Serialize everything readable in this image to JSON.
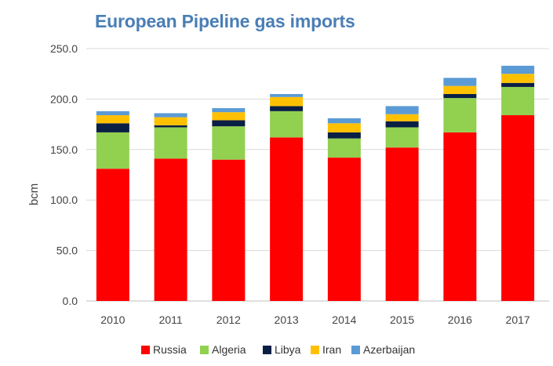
{
  "chart_data": {
    "type": "bar",
    "stacked": true,
    "title": "European Pipeline gas imports",
    "xlabel": "",
    "ylabel": "bcm",
    "categories": [
      "2010",
      "2011",
      "2012",
      "2013",
      "2014",
      "2015",
      "2016",
      "2017"
    ],
    "ylim": [
      0,
      250
    ],
    "yticks": [
      "0.0",
      "50.0",
      "100.0",
      "150.0",
      "200.0",
      "250.0"
    ],
    "grid": true,
    "legend": "bottom",
    "series": [
      {
        "name": "Russia",
        "color": "#ff0000",
        "values": [
          131,
          141,
          140,
          162,
          142,
          152,
          167,
          184
        ]
      },
      {
        "name": "Algeria",
        "color": "#92d050",
        "values": [
          36,
          31,
          33,
          26,
          19,
          20,
          34,
          28
        ]
      },
      {
        "name": "Libya",
        "color": "#0a1f44",
        "values": [
          9,
          2,
          6,
          5,
          6,
          6,
          4,
          4
        ]
      },
      {
        "name": "Iran",
        "color": "#ffc000",
        "values": [
          8,
          8,
          8,
          9,
          9,
          7,
          8,
          9
        ]
      },
      {
        "name": "Azerbaijan",
        "color": "#5b9bd5",
        "values": [
          4,
          4,
          4,
          3,
          5,
          8,
          8,
          8
        ]
      }
    ]
  }
}
